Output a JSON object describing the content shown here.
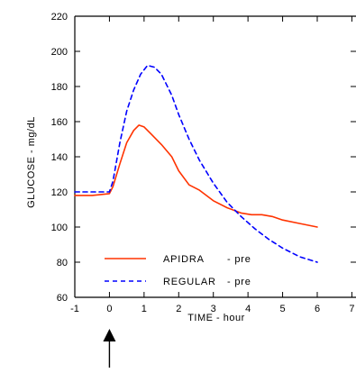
{
  "chart_data": {
    "type": "line",
    "xlabel": "TIME - hour",
    "ylabel": "GLUCOSE - mg/dL",
    "xlim": [
      -1,
      7
    ],
    "ylim": [
      60,
      220
    ],
    "xticks": [
      -1,
      0,
      1,
      2,
      3,
      4,
      5,
      6,
      7
    ],
    "yticks": [
      60,
      80,
      100,
      120,
      140,
      160,
      180,
      200,
      220
    ],
    "grid": false,
    "legend_position": "bottom-left",
    "series": [
      {
        "name": "APIDRA - pre",
        "legend_label": "APIDRA",
        "legend_suffix": "- pre",
        "color": "#ff3300",
        "style": "solid",
        "x": [
          -1,
          -0.5,
          0,
          0.1,
          0.3,
          0.5,
          0.7,
          0.85,
          1.0,
          1.2,
          1.5,
          1.8,
          2.0,
          2.3,
          2.6,
          3.0,
          3.4,
          3.8,
          4.1,
          4.4,
          4.7,
          5.0,
          5.5,
          6.0
        ],
        "y": [
          118,
          118,
          119,
          123,
          136,
          148,
          155,
          158,
          157,
          153,
          147,
          140,
          132,
          124,
          121,
          115,
          111,
          108,
          107,
          107,
          106,
          104,
          102,
          100
        ]
      },
      {
        "name": "REGULAR - pre",
        "legend_label": "REGULAR",
        "legend_suffix": "- pre",
        "color": "#0000ff",
        "style": "dashed",
        "x": [
          -1,
          -0.5,
          0,
          0.1,
          0.3,
          0.5,
          0.7,
          0.9,
          1.1,
          1.3,
          1.5,
          1.8,
          2.0,
          2.3,
          2.6,
          3.0,
          3.4,
          3.8,
          4.2,
          4.6,
          5.0,
          5.5,
          6.0
        ],
        "y": [
          120,
          120,
          120,
          126,
          148,
          166,
          178,
          187,
          192,
          191,
          187,
          175,
          164,
          150,
          138,
          125,
          114,
          106,
          99,
          93,
          88,
          83,
          80
        ]
      }
    ],
    "annotations": [
      {
        "type": "arrow",
        "x": 0,
        "direction": "up"
      }
    ]
  }
}
